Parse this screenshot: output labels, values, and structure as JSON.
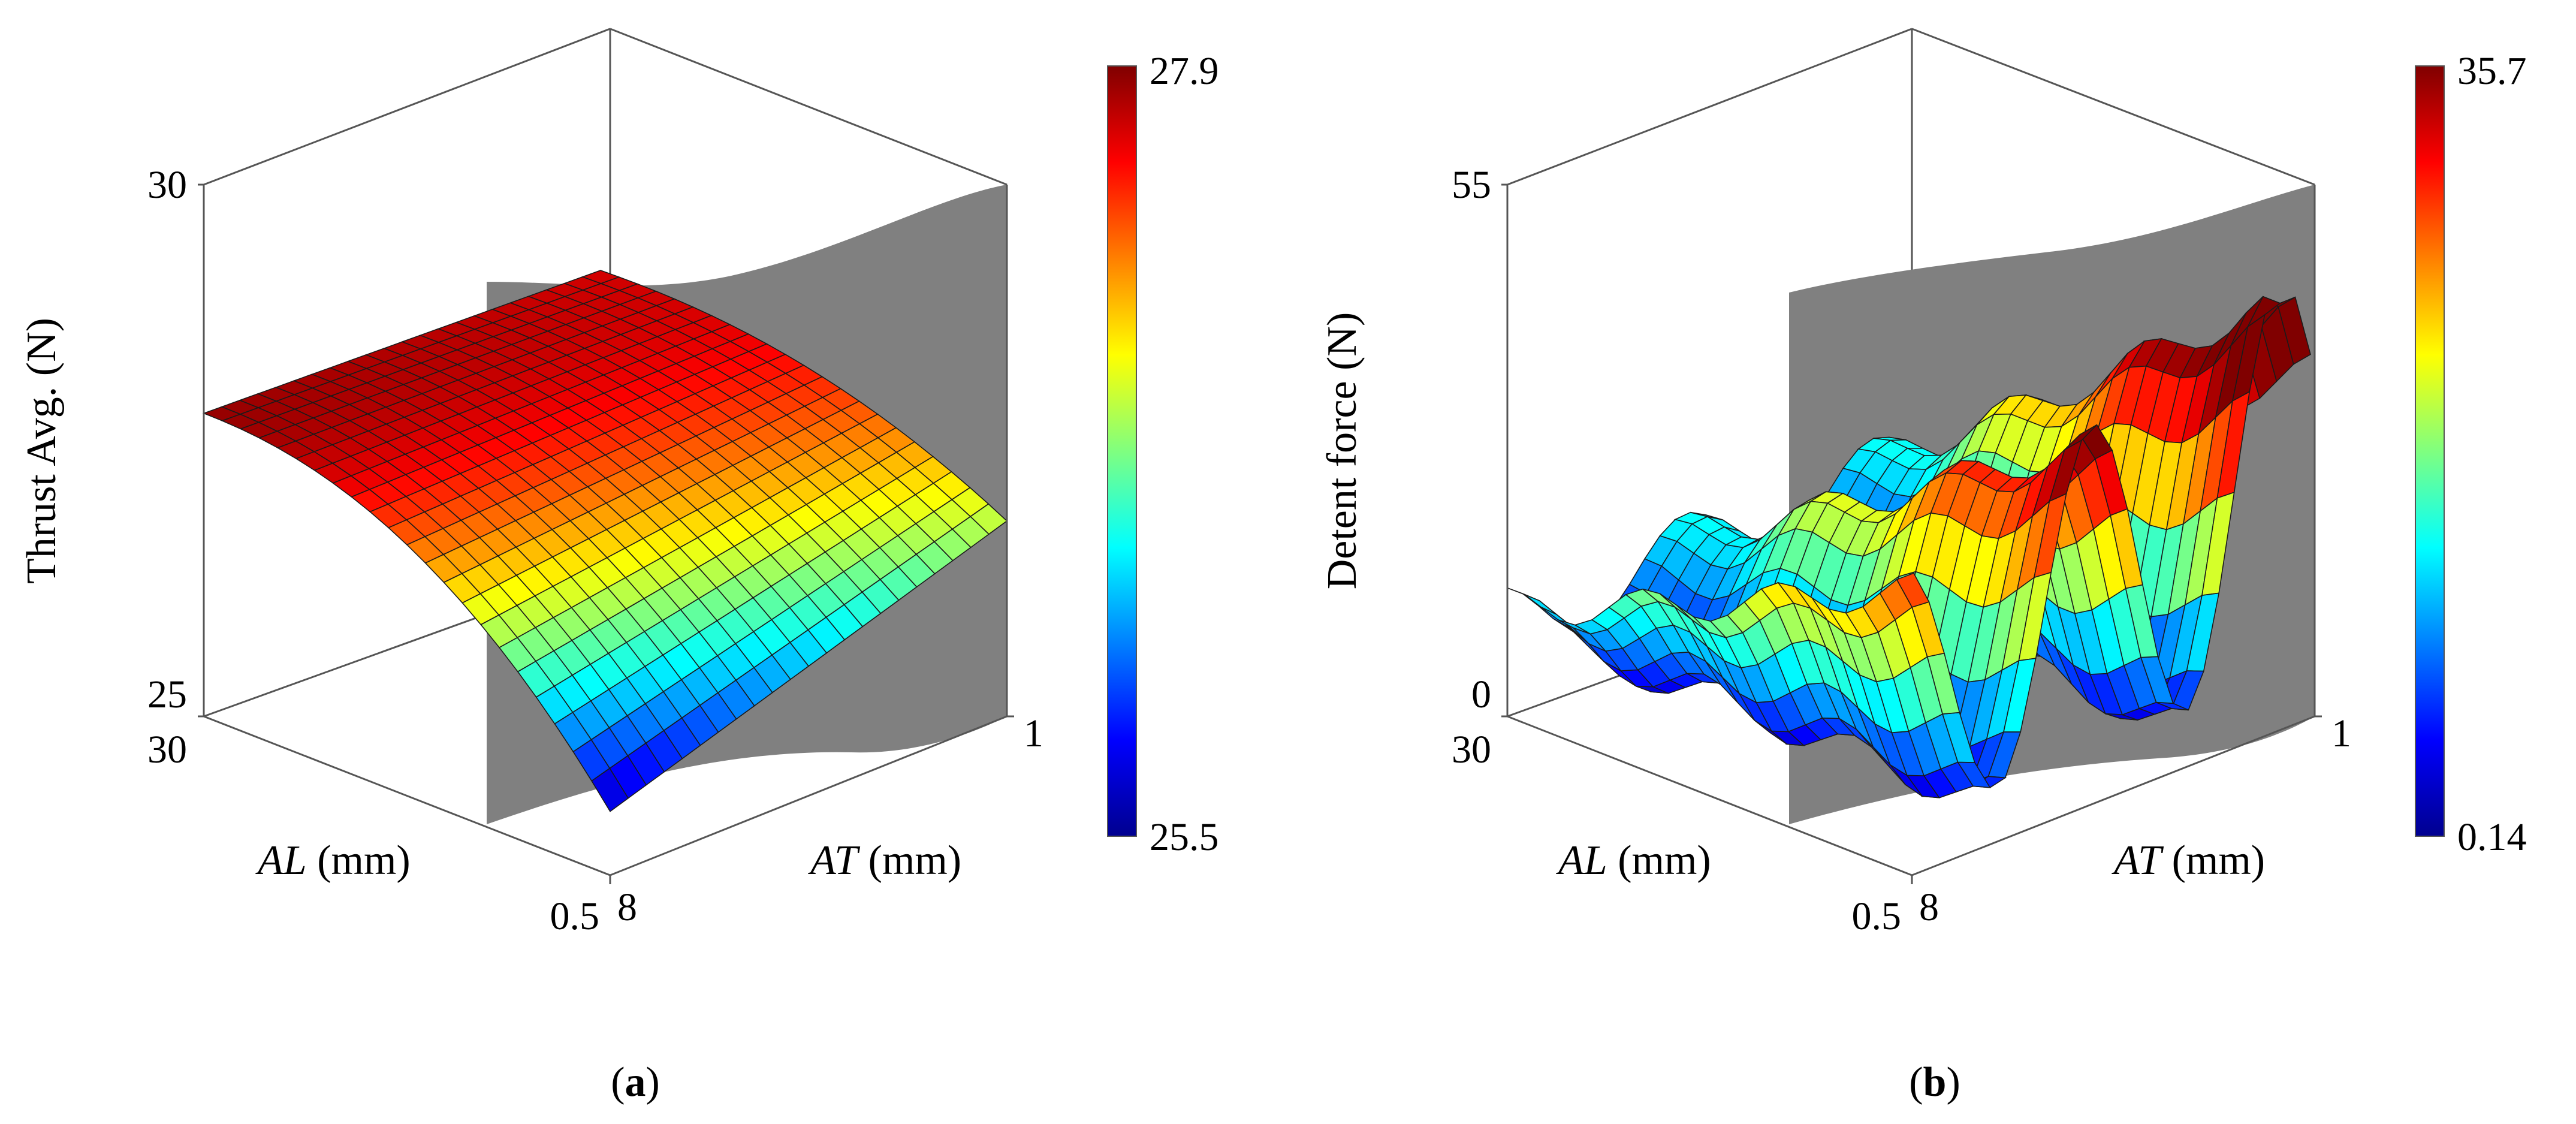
{
  "charts": [
    {
      "id": "a",
      "type": "surface3d",
      "zlabel": "Thrust Avg. (N)",
      "zlim": [
        25,
        30
      ],
      "z_ticks": [
        "30",
        "25"
      ],
      "al_label": {
        "italic": "AL",
        "unit": " (mm)"
      },
      "at_label": {
        "italic": "AT",
        "unit": " (mm)"
      },
      "al_range": [
        0.5,
        30
      ],
      "at_range": [
        1,
        8
      ],
      "al_ticks": [
        "30",
        "0.5"
      ],
      "at_ticks": [
        "8",
        "1"
      ],
      "colorbar": {
        "min": "25.5",
        "max": "27.9"
      },
      "subcaption": {
        "open": "(",
        "letter": "a",
        "close": ")"
      }
    },
    {
      "id": "b",
      "type": "surface3d",
      "zlabel": "Detent force (N)",
      "zlim": [
        0,
        55
      ],
      "z_ticks": [
        "55",
        "0"
      ],
      "al_label": {
        "italic": "AL",
        "unit": " (mm)"
      },
      "at_label": {
        "italic": "AT",
        "unit": " (mm)"
      },
      "al_range": [
        0.5,
        30
      ],
      "at_range": [
        1,
        8
      ],
      "al_ticks": [
        "30",
        "0.5"
      ],
      "at_ticks": [
        "8",
        "1"
      ],
      "colorbar": {
        "min": "0.14",
        "max": "35.7"
      },
      "subcaption": {
        "open": "(",
        "letter": "b",
        "close": ")"
      }
    }
  ],
  "colors": {
    "jet": [
      "#00008f",
      "#0000ff",
      "#00ffff",
      "#ffff00",
      "#ff0000",
      "#800000"
    ],
    "axis": "#555555",
    "shadow": "#808080",
    "mesh": "#1a1a1a"
  }
}
